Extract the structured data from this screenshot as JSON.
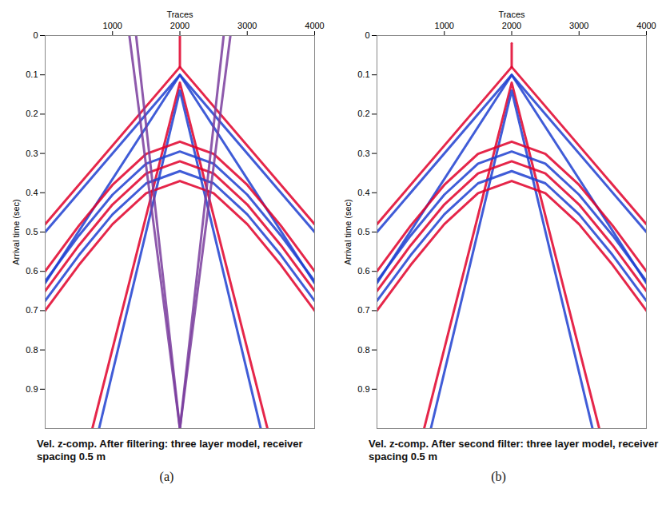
{
  "chart_data": [
    {
      "type": "line",
      "title": "Vel. z-comp. After filtering: three layer model, receiver spacing 0.5 m",
      "panel_label": "(a)",
      "x_label": "Traces",
      "y_label": "Arrival time (sec)",
      "xlim": [
        0,
        4000
      ],
      "xticks": [
        1000,
        2000,
        3000,
        4000
      ],
      "ylim": [
        1,
        0
      ],
      "yticks": [
        0,
        0.1,
        0.2,
        0.3,
        0.4,
        0.5,
        0.6,
        0.7,
        0.8,
        0.9
      ],
      "grid": false,
      "series": [
        {
          "color": "#e0002a",
          "x": [
            2000,
            2000
          ],
          "values": [
            0,
            0.08
          ]
        },
        {
          "color": "#e0002a",
          "x": [
            0,
            2000,
            4000
          ],
          "values": [
            0.48,
            0.08,
            0.48
          ]
        },
        {
          "color": "#1f3fd0",
          "x": [
            0,
            2000,
            4000
          ],
          "values": [
            0.5,
            0.1,
            0.5
          ]
        },
        {
          "color": "#1f3fd0",
          "x": [
            0,
            2000,
            4000
          ],
          "values": [
            0.63,
            0.1,
            0.63
          ]
        },
        {
          "color": "#e0002a",
          "x": [
            700,
            2000,
            3300
          ],
          "values": [
            1.0,
            0.12,
            1.0
          ]
        },
        {
          "color": "#1f3fd0",
          "x": [
            800,
            2000,
            3200
          ],
          "values": [
            1.0,
            0.14,
            1.0
          ]
        },
        {
          "color": "#e0002a",
          "x": [
            0,
            500,
            1000,
            1500,
            2000,
            2500,
            3000,
            3500,
            4000
          ],
          "values": [
            0.6,
            0.484,
            0.38,
            0.301,
            0.27,
            0.301,
            0.38,
            0.484,
            0.6
          ]
        },
        {
          "color": "#1f3fd0",
          "x": [
            0,
            500,
            1000,
            1500,
            2000,
            2500,
            3000,
            3500,
            4000
          ],
          "values": [
            0.625,
            0.509,
            0.405,
            0.326,
            0.295,
            0.326,
            0.405,
            0.509,
            0.625
          ]
        },
        {
          "color": "#e0002a",
          "x": [
            0,
            500,
            1000,
            1500,
            2000,
            2500,
            3000,
            3500,
            4000
          ],
          "values": [
            0.65,
            0.534,
            0.43,
            0.351,
            0.32,
            0.351,
            0.43,
            0.534,
            0.65
          ]
        },
        {
          "color": "#1f3fd0",
          "x": [
            0,
            500,
            1000,
            1500,
            2000,
            2500,
            3000,
            3500,
            4000
          ],
          "values": [
            0.675,
            0.559,
            0.455,
            0.376,
            0.345,
            0.376,
            0.455,
            0.559,
            0.675
          ]
        },
        {
          "color": "#e0002a",
          "x": [
            0,
            500,
            1000,
            1500,
            2000,
            2500,
            3000,
            3500,
            4000
          ],
          "values": [
            0.7,
            0.584,
            0.48,
            0.401,
            0.37,
            0.401,
            0.48,
            0.584,
            0.7
          ]
        },
        {
          "color": "#7a3d9e",
          "x": [
            1250,
            2000,
            2750
          ],
          "values": [
            0,
            1.0,
            0
          ]
        },
        {
          "color": "#7a3d9e",
          "x": [
            1350,
            2000,
            2650
          ],
          "values": [
            0,
            1.0,
            0
          ]
        }
      ]
    },
    {
      "type": "line",
      "title": "Vel. z-comp. After second filter: three layer model, receiver spacing 0.5 m",
      "panel_label": "(b)",
      "x_label": "Traces",
      "y_label": "Arrival time (sec)",
      "xlim": [
        0,
        4000
      ],
      "xticks": [
        1000,
        2000,
        3000,
        4000
      ],
      "ylim": [
        1,
        0
      ],
      "yticks": [
        0,
        0.1,
        0.2,
        0.3,
        0.4,
        0.5,
        0.6,
        0.7,
        0.8,
        0.9
      ],
      "grid": false,
      "series": [
        {
          "color": "#e0002a",
          "x": [
            2000,
            2000
          ],
          "values": [
            0.02,
            0.08
          ]
        },
        {
          "color": "#e0002a",
          "x": [
            0,
            2000,
            4000
          ],
          "values": [
            0.48,
            0.08,
            0.48
          ]
        },
        {
          "color": "#1f3fd0",
          "x": [
            0,
            2000,
            4000
          ],
          "values": [
            0.5,
            0.1,
            0.5
          ]
        },
        {
          "color": "#1f3fd0",
          "x": [
            0,
            2000,
            4000
          ],
          "values": [
            0.63,
            0.1,
            0.63
          ]
        },
        {
          "color": "#e0002a",
          "x": [
            700,
            2000,
            3300
          ],
          "values": [
            1.0,
            0.12,
            1.0
          ]
        },
        {
          "color": "#1f3fd0",
          "x": [
            800,
            2000,
            3200
          ],
          "values": [
            1.0,
            0.14,
            1.0
          ]
        },
        {
          "color": "#e0002a",
          "x": [
            0,
            500,
            1000,
            1500,
            2000,
            2500,
            3000,
            3500,
            4000
          ],
          "values": [
            0.6,
            0.484,
            0.38,
            0.301,
            0.27,
            0.301,
            0.38,
            0.484,
            0.6
          ]
        },
        {
          "color": "#1f3fd0",
          "x": [
            0,
            500,
            1000,
            1500,
            2000,
            2500,
            3000,
            3500,
            4000
          ],
          "values": [
            0.625,
            0.509,
            0.405,
            0.326,
            0.295,
            0.326,
            0.405,
            0.509,
            0.625
          ]
        },
        {
          "color": "#e0002a",
          "x": [
            0,
            500,
            1000,
            1500,
            2000,
            2500,
            3000,
            3500,
            4000
          ],
          "values": [
            0.65,
            0.534,
            0.43,
            0.351,
            0.32,
            0.351,
            0.43,
            0.534,
            0.65
          ]
        },
        {
          "color": "#1f3fd0",
          "x": [
            0,
            500,
            1000,
            1500,
            2000,
            2500,
            3000,
            3500,
            4000
          ],
          "values": [
            0.675,
            0.559,
            0.455,
            0.376,
            0.345,
            0.376,
            0.455,
            0.559,
            0.675
          ]
        },
        {
          "color": "#e0002a",
          "x": [
            0,
            500,
            1000,
            1500,
            2000,
            2500,
            3000,
            3500,
            4000
          ],
          "values": [
            0.7,
            0.584,
            0.48,
            0.401,
            0.37,
            0.401,
            0.48,
            0.584,
            0.7
          ]
        }
      ]
    }
  ]
}
